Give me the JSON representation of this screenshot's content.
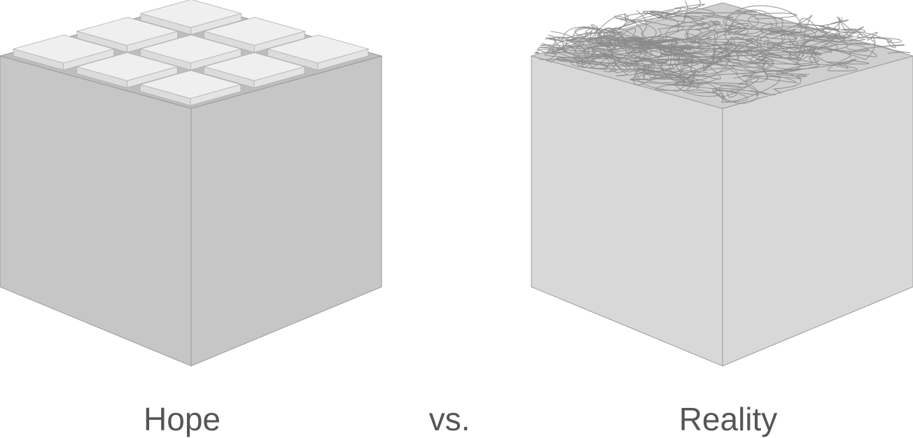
{
  "captions": {
    "hope": "Hope",
    "versus": "vs.",
    "reality": "Reality"
  },
  "colors": {
    "text": "#555555",
    "hope_box_side": "#c6c6c6",
    "hope_box_top_rim": "#bdbdbd",
    "hope_tile_face": "#efefef",
    "reality_box_side": "#d8d8d8",
    "reality_box_top": "#cfcfcf",
    "tangle_line": "#8a8a8a",
    "edge": "#9a9a9a"
  },
  "icons": {
    "hope": "neatly-packed-box-icon",
    "reality": "tangled-box-icon"
  }
}
